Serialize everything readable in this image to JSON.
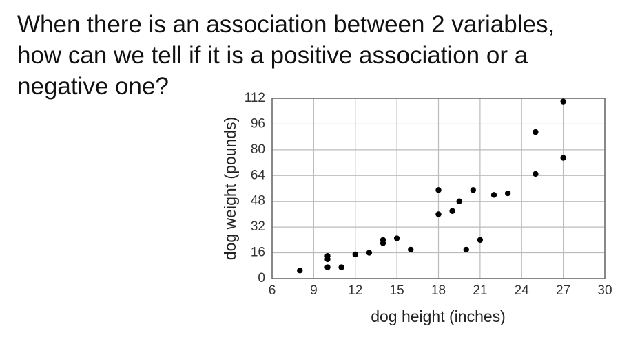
{
  "question": [
    "When there is an association between 2 variables,",
    "how can we tell if it is a positive association or a",
    "negative one?"
  ],
  "chart_data": {
    "type": "scatter",
    "x_label": "dog height (inches)",
    "y_label": "dog weight (pounds)",
    "x": [
      8,
      10,
      10,
      10,
      11,
      12,
      13,
      14,
      14,
      15,
      16,
      18,
      18,
      19,
      19.5,
      20,
      20.5,
      21,
      22,
      23,
      25,
      25,
      27,
      27
    ],
    "values": [
      5,
      14,
      12,
      7,
      7,
      15,
      16,
      24,
      22,
      25,
      18,
      55,
      40,
      42,
      48,
      18,
      55,
      24,
      52,
      53,
      91,
      65,
      110,
      75
    ],
    "color": "#000000",
    "xlim": [
      6,
      30
    ],
    "xticks": [
      6,
      9,
      12,
      15,
      18,
      21,
      24,
      27,
      30
    ],
    "ylim": [
      0,
      112
    ],
    "yticks": [
      0,
      16,
      32,
      48,
      64,
      80,
      96,
      112
    ],
    "grid": true
  }
}
